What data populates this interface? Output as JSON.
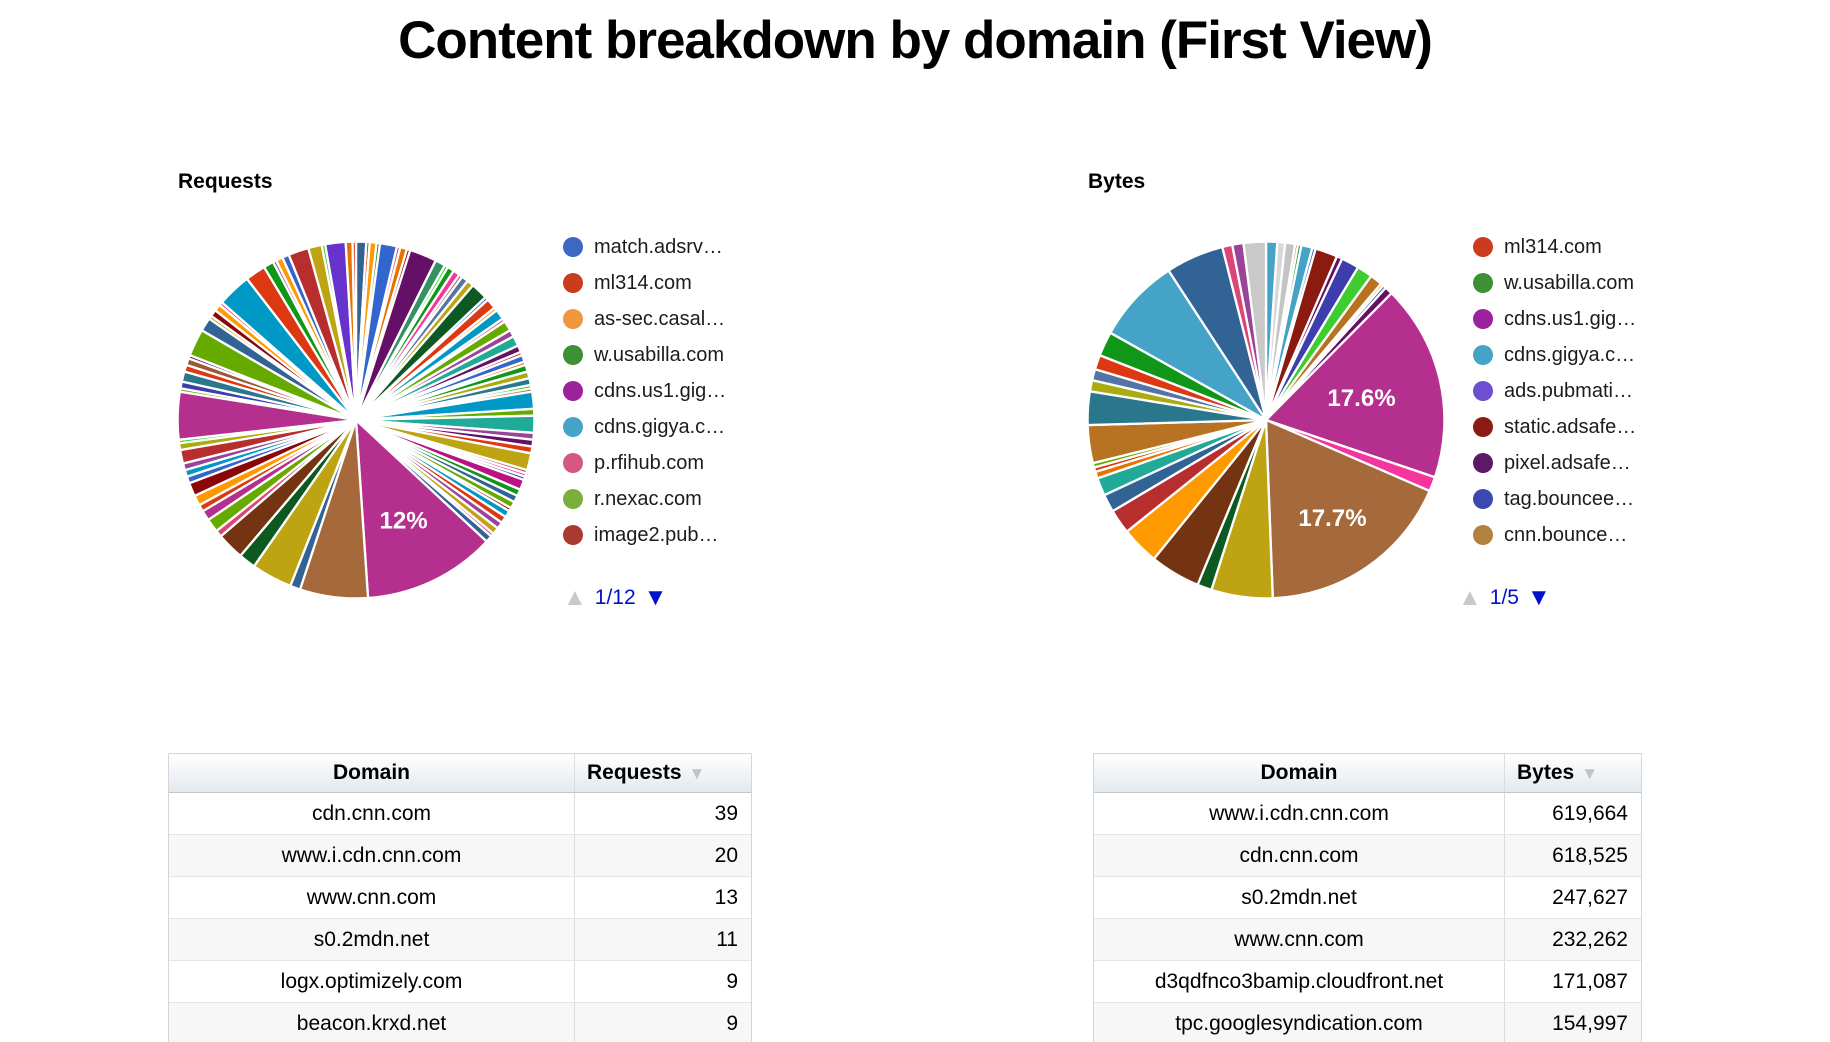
{
  "title": "Content breakdown by domain (First View)",
  "icons": {
    "page_up": "▲",
    "page_down": "▼",
    "sort_desc": "▼"
  },
  "colors": {
    "pagination_active": "#0011cc",
    "pagination_disabled": "#c9c9c9",
    "sort_triangle": "#c3c3c3"
  },
  "sections": [
    {
      "chart_label": "Requests",
      "pagination": "1/12",
      "table": {
        "domain_header": "Domain",
        "value_header": "Requests",
        "sorted_by": "Requests",
        "rows": [
          {
            "domain": "cdn.cnn.com",
            "value": "39"
          },
          {
            "domain": "www.i.cdn.cnn.com",
            "value": "20"
          },
          {
            "domain": "www.cnn.com",
            "value": "13"
          },
          {
            "domain": "s0.2mdn.net",
            "value": "11"
          },
          {
            "domain": "logx.optimizely.com",
            "value": "9"
          },
          {
            "domain": "beacon.krxd.net",
            "value": "9"
          }
        ]
      }
    },
    {
      "chart_label": "Bytes",
      "pagination": "1/5",
      "table": {
        "domain_header": "Domain",
        "value_header": "Bytes",
        "sorted_by": "Bytes",
        "rows": [
          {
            "domain": "www.i.cdn.cnn.com",
            "value": "619,664"
          },
          {
            "domain": "cdn.cnn.com",
            "value": "618,525"
          },
          {
            "domain": "s0.2mdn.net",
            "value": "247,627"
          },
          {
            "domain": "www.cnn.com",
            "value": "232,262"
          },
          {
            "domain": "d3qdfnco3bamip.cloudfront.net",
            "value": "171,087"
          },
          {
            "domain": "tpc.googlesyndication.com",
            "value": "154,997"
          }
        ]
      }
    }
  ],
  "chart_data": [
    {
      "type": "pie",
      "title": "Requests",
      "legend_position": "right",
      "legend_page": "1/12",
      "legend": [
        {
          "label": "match.adsrv…",
          "color": "#3c68c4"
        },
        {
          "label": "ml314.com",
          "color": "#cb3b1e"
        },
        {
          "label": "as-sec.casal…",
          "color": "#f0963c"
        },
        {
          "label": "w.usabilla.com",
          "color": "#3d9033"
        },
        {
          "label": "cdns.us1.gig…",
          "color": "#9c219c"
        },
        {
          "label": "cdns.gigya.c…",
          "color": "#45a3c8"
        },
        {
          "label": "p.rfihub.com",
          "color": "#d5597e"
        },
        {
          "label": "r.nexac.com",
          "color": "#7aaf3c"
        },
        {
          "label": "image2.pub…",
          "color": "#a83a30"
        }
      ],
      "labeled_slices": [
        {
          "label": "12%",
          "percent": 12
        }
      ],
      "slices": [
        {
          "c": "#316395",
          "v": 3
        },
        {
          "c": "#dc3912",
          "v": 1
        },
        {
          "c": "#ff9900",
          "v": 2
        },
        {
          "c": "#109618",
          "v": 1
        },
        {
          "c": "#3366cc",
          "v": 5
        },
        {
          "c": "#dd4477",
          "v": 1
        },
        {
          "c": "#e67300",
          "v": 2
        },
        {
          "c": "#8b0707",
          "v": 1
        },
        {
          "c": "#651067",
          "v": 8
        },
        {
          "c": "#329262",
          "v": 3
        },
        {
          "c": "#16d620",
          "v": 1
        },
        {
          "c": "#109618",
          "v": 2
        },
        {
          "c": "#f4359e",
          "v": 2
        },
        {
          "c": "#9c5935",
          "v": 1
        },
        {
          "c": "#5574a6",
          "v": 2
        },
        {
          "c": "#bea413",
          "v": 2
        },
        {
          "c": "#0c5922",
          "v": 5
        },
        {
          "c": "#3366cc",
          "v": 1
        },
        {
          "c": "#dc3912",
          "v": 3
        },
        {
          "c": "#ff9900",
          "v": 1
        },
        {
          "c": "#0099c6",
          "v": 3
        },
        {
          "c": "#dd4477",
          "v": 1
        },
        {
          "c": "#66aa00",
          "v": 3
        },
        {
          "c": "#994499",
          "v": 2
        },
        {
          "c": "#22aa99",
          "v": 3
        },
        {
          "c": "#651067",
          "v": 2
        },
        {
          "c": "#b82e2e",
          "v": 1
        },
        {
          "c": "#3366cc",
          "v": 2
        },
        {
          "c": "#e67300",
          "v": 1
        },
        {
          "c": "#109618",
          "v": 2
        },
        {
          "c": "#aaaa11",
          "v": 2
        },
        {
          "c": "#2a778d",
          "v": 2
        },
        {
          "c": "#16d620",
          "v": 1
        },
        {
          "c": "#b77322",
          "v": 1
        },
        {
          "c": "#0099c6",
          "v": 5
        },
        {
          "c": "#66aa00",
          "v": 2
        },
        {
          "c": "#22aa99",
          "v": 5
        },
        {
          "c": "#994499",
          "v": 2
        },
        {
          "c": "#651067",
          "v": 2
        },
        {
          "c": "#dc3912",
          "v": 2
        },
        {
          "c": "#bea413",
          "v": 5
        },
        {
          "c": "#9c5935",
          "v": 1
        },
        {
          "c": "#f4359e",
          "v": 1
        },
        {
          "c": "#3b3eac",
          "v": 1
        },
        {
          "c": "#b91383",
          "v": 3
        },
        {
          "c": "#109618",
          "v": 2
        },
        {
          "c": "#316395",
          "v": 2
        },
        {
          "c": "#66aa00",
          "v": 2
        },
        {
          "c": "#8b0707",
          "v": 1
        },
        {
          "c": "#0099c6",
          "v": 2
        },
        {
          "c": "#dc3912",
          "v": 2
        },
        {
          "c": "#994499",
          "v": 2
        },
        {
          "c": "#bea413",
          "v": 2
        },
        {
          "c": "#f4359e",
          "v": 1
        },
        {
          "c": "#316395",
          "v": 2
        },
        {
          "c": "#b5308e",
          "v": 39,
          "label": "12%",
          "lr": 0.62
        },
        {
          "c": "#a6693c",
          "v": 20
        },
        {
          "c": "#316395",
          "v": 3
        },
        {
          "c": "#bea413",
          "v": 12
        },
        {
          "c": "#0c5922",
          "v": 5
        },
        {
          "c": "#743411",
          "v": 8
        },
        {
          "c": "#dd4477",
          "v": 2
        },
        {
          "c": "#66aa00",
          "v": 4
        },
        {
          "c": "#b5308e",
          "v": 3
        },
        {
          "c": "#dc3912",
          "v": 2
        },
        {
          "c": "#ff9900",
          "v": 3
        },
        {
          "c": "#8b0707",
          "v": 4
        },
        {
          "c": "#3366cc",
          "v": 2
        },
        {
          "c": "#0099c6",
          "v": 2
        },
        {
          "c": "#994499",
          "v": 2
        },
        {
          "c": "#b82e2e",
          "v": 4
        },
        {
          "c": "#aaaa11",
          "v": 2
        },
        {
          "c": "#16d620",
          "v": 1
        },
        {
          "c": "#b5308e",
          "v": 14
        },
        {
          "c": "#66aa00",
          "v": 1
        },
        {
          "c": "#3b3eac",
          "v": 2
        },
        {
          "c": "#2a778d",
          "v": 3
        },
        {
          "c": "#dc3912",
          "v": 2
        },
        {
          "c": "#9c5935",
          "v": 2
        },
        {
          "c": "#651067",
          "v": 1
        },
        {
          "c": "#66aa00",
          "v": 8
        },
        {
          "c": "#316395",
          "v": 4
        },
        {
          "c": "#bea413",
          "v": 1
        },
        {
          "c": "#8b0707",
          "v": 2
        },
        {
          "c": "#ff9900",
          "v": 2
        },
        {
          "c": "#dd4477",
          "v": 1
        },
        {
          "c": "#0099c6",
          "v": 10
        },
        {
          "c": "#dc3912",
          "v": 6
        },
        {
          "c": "#109618",
          "v": 3
        },
        {
          "c": "#994499",
          "v": 1
        },
        {
          "c": "#ff9900",
          "v": 2
        },
        {
          "c": "#3366cc",
          "v": 2
        },
        {
          "c": "#b82e2e",
          "v": 6
        },
        {
          "c": "#bea413",
          "v": 4
        },
        {
          "c": "#16d620",
          "v": 1
        },
        {
          "c": "#6633cc",
          "v": 6
        },
        {
          "c": "#e67300",
          "v": 2
        },
        {
          "c": "#dc3912",
          "v": 1
        }
      ]
    },
    {
      "type": "pie",
      "title": "Bytes",
      "legend_position": "right",
      "legend_page": "1/5",
      "legend": [
        {
          "label": "ml314.com",
          "color": "#cb3b1e"
        },
        {
          "label": "w.usabilla.com",
          "color": "#3d9033"
        },
        {
          "label": "cdns.us1.gig…",
          "color": "#9c219c"
        },
        {
          "label": "cdns.gigya.c…",
          "color": "#45a3c8"
        },
        {
          "label": "ads.pubmati…",
          "color": "#6e4fd2"
        },
        {
          "label": "static.adsafe…",
          "color": "#8b1a10"
        },
        {
          "label": "pixel.adsafe…",
          "color": "#5c1a66"
        },
        {
          "label": "tag.bouncee…",
          "color": "#3b48b0"
        },
        {
          "label": "cnn.bounce…",
          "color": "#b3813e"
        }
      ],
      "labeled_slices": [
        {
          "label": "17.6%",
          "percent": 17.6
        },
        {
          "label": "17.7%",
          "percent": 17.7
        }
      ],
      "slices": [
        {
          "c": "#45a3c8",
          "v": 1.0
        },
        {
          "c": "#d8d8d8",
          "v": 0.7
        },
        {
          "c": "#c4c4c4",
          "v": 0.9
        },
        {
          "c": "#dc3912",
          "v": 0.25
        },
        {
          "c": "#109618",
          "v": 0.3
        },
        {
          "c": "#45a3c8",
          "v": 1.0
        },
        {
          "c": "#3366cc",
          "v": 0.3
        },
        {
          "c": "#8b1a10",
          "v": 2.0
        },
        {
          "c": "#651067",
          "v": 0.5
        },
        {
          "c": "#3b3eac",
          "v": 1.6
        },
        {
          "c": "#3fcc30",
          "v": 1.4
        },
        {
          "c": "#b77322",
          "v": 1.1
        },
        {
          "c": "#ff9900",
          "v": 0.25
        },
        {
          "c": "#316395",
          "v": 0.3
        },
        {
          "c": "#651067",
          "v": 0.7
        },
        {
          "c": "#b5308e",
          "v": 17.6,
          "label": "17.6%",
          "lr": 0.55
        },
        {
          "c": "#f4359e",
          "v": 1.3
        },
        {
          "c": "#a6693c",
          "v": 17.7,
          "label": "17.7%",
          "lr": 0.66
        },
        {
          "c": "#bea413",
          "v": 5.5
        },
        {
          "c": "#0c5922",
          "v": 1.3
        },
        {
          "c": "#743411",
          "v": 4.5
        },
        {
          "c": "#ff9900",
          "v": 3.4
        },
        {
          "c": "#b82e2e",
          "v": 2.2
        },
        {
          "c": "#316395",
          "v": 1.6
        },
        {
          "c": "#22aa99",
          "v": 1.6
        },
        {
          "c": "#e67300",
          "v": 0.6
        },
        {
          "c": "#dc3912",
          "v": 0.4
        },
        {
          "c": "#66aa00",
          "v": 0.4
        },
        {
          "c": "#b77322",
          "v": 3.4
        },
        {
          "c": "#2a778d",
          "v": 3.0
        },
        {
          "c": "#aaaa11",
          "v": 1.0
        },
        {
          "c": "#5574a6",
          "v": 1.0
        },
        {
          "c": "#dc3912",
          "v": 1.3
        },
        {
          "c": "#109618",
          "v": 2.2
        },
        {
          "c": "#45a3c8",
          "v": 7.6
        },
        {
          "c": "#316395",
          "v": 5.2
        },
        {
          "c": "#dd4477",
          "v": 0.9
        },
        {
          "c": "#994499",
          "v": 1.0
        },
        {
          "c": "#c9c9c9",
          "v": 2.0
        }
      ]
    }
  ]
}
